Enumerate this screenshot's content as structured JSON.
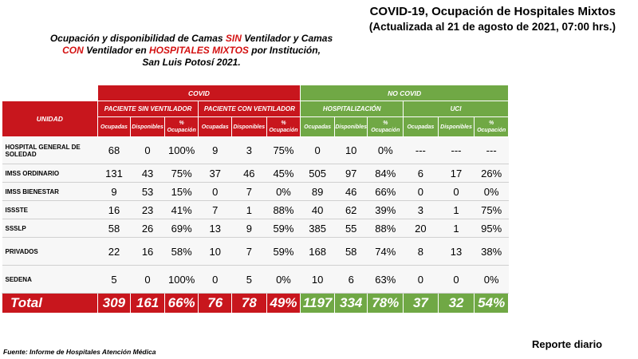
{
  "header": {
    "title": "COVID-19, Ocupación de Hospitales Mixtos",
    "updated": "(Actualizada al 21 de agosto de 2021, 07:00 hrs.)"
  },
  "subtitle": {
    "p1": "Ocupación y disponibilidad de Camas ",
    "sin": "SIN",
    "p2": " Ventilador y Camas",
    "con": "CON",
    "p3": " Ventilador en ",
    "mixtos": "HOSPITALES MIXTOS",
    "p4": " por Institución,",
    "line3": "San Luis Potosí 2021."
  },
  "table": {
    "group_covid": "COVID",
    "group_no_covid": "NO COVID",
    "unidad_header": "UNIDAD",
    "sub_sin_vent": "PACIENTE SIN VENTILADOR",
    "sub_con_vent": "PACIENTE CON VENTILADOR",
    "sub_hosp": "HOSPITALIZACIÓN",
    "sub_uci": "UCI",
    "col_ocupadas": "Ocupadas",
    "col_disponibles": "Disponibles",
    "col_pct_1": "%",
    "col_pct_2": "Ocupación",
    "rows": [
      {
        "name": "HOSPITAL GENERAL DE SOLEDAD",
        "values": [
          "68",
          "0",
          "100%",
          "9",
          "3",
          "75%",
          "0",
          "10",
          "0%",
          "---",
          "---",
          "---"
        ]
      },
      {
        "name": "IMSS ORDINARIO",
        "values": [
          "131",
          "43",
          "75%",
          "37",
          "46",
          "45%",
          "505",
          "97",
          "84%",
          "6",
          "17",
          "26%"
        ]
      },
      {
        "name": "IMSS BIENESTAR",
        "values": [
          "9",
          "53",
          "15%",
          "0",
          "7",
          "0%",
          "89",
          "46",
          "66%",
          "0",
          "0",
          "0%"
        ]
      },
      {
        "name": "ISSSTE",
        "values": [
          "16",
          "23",
          "41%",
          "7",
          "1",
          "88%",
          "40",
          "62",
          "39%",
          "3",
          "1",
          "75%"
        ]
      },
      {
        "name": "SSSLP",
        "values": [
          "58",
          "26",
          "69%",
          "13",
          "9",
          "59%",
          "385",
          "55",
          "88%",
          "20",
          "1",
          "95%"
        ]
      },
      {
        "name": "PRIVADOS",
        "values": [
          "22",
          "16",
          "58%",
          "10",
          "7",
          "59%",
          "168",
          "58",
          "74%",
          "8",
          "13",
          "38%"
        ]
      },
      {
        "name": "SEDENA",
        "values": [
          "5",
          "0",
          "100%",
          "0",
          "5",
          "0%",
          "10",
          "6",
          "63%",
          "0",
          "0",
          "0%"
        ]
      }
    ],
    "total": {
      "label": "Total",
      "values": [
        "309",
        "161",
        "66%",
        "76",
        "78",
        "49%",
        "1197",
        "334",
        "78%",
        "37",
        "32",
        "54%"
      ]
    }
  },
  "footer": {
    "source": "Fuente: Informe de Hospitales Atención Médica",
    "report": "Reporte diario"
  },
  "colors": {
    "covid_red": "#c8161d",
    "nocovid_green": "#70a845"
  }
}
